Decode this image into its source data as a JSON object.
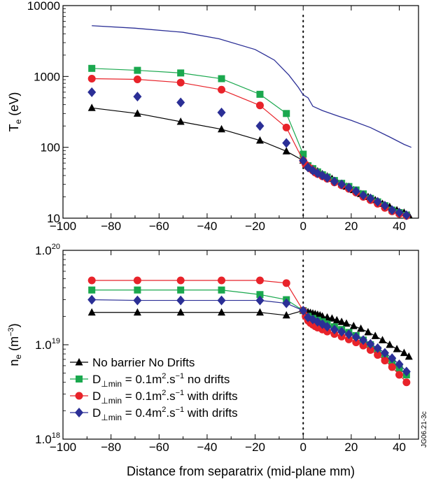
{
  "figure_id": "JG06.21-3c",
  "shared_xlabel": "Distance from separatrix (mid-plane mm)",
  "legend": [
    {
      "key": "no_barrier",
      "label": "No barrier No Drifts",
      "marker": "triangle",
      "color": "#000000"
    },
    {
      "key": "d01_nodrift",
      "label_parts": [
        "D",
        "⊥min",
        " = 0.1m",
        "2",
        ".s",
        "−1",
        " no drifts"
      ],
      "marker": "square",
      "color": "#1aa84e"
    },
    {
      "key": "d01_drift",
      "label_parts": [
        "D",
        "⊥min",
        " = 0.1m",
        "2",
        ".s",
        "−1",
        " with drifts"
      ],
      "marker": "circle",
      "color": "#e8232a"
    },
    {
      "key": "d04_drift",
      "label_parts": [
        "D",
        "⊥min",
        " = 0.4m",
        "2",
        ".s",
        "−1",
        " with drifts"
      ],
      "marker": "diamond",
      "color": "#2b2f96"
    }
  ],
  "chart_data": [
    {
      "type": "line",
      "panel": "top",
      "ylabel_parts": [
        "T",
        "e",
        " (eV)"
      ],
      "xlabel": "",
      "xlim": [
        -100,
        48
      ],
      "ylim": [
        10,
        10000
      ],
      "yscale": "log",
      "xticks": [
        -100,
        -80,
        -60,
        -40,
        -20,
        0,
        20,
        40
      ],
      "xtick_labels": [
        "−100",
        "−80",
        "−60",
        "−40",
        "−20",
        "0",
        "20",
        "40"
      ],
      "yticks": [
        10,
        100,
        1000,
        10000
      ],
      "ytick_labels": [
        "10",
        "100",
        "1000",
        "10000"
      ],
      "vline_x": 0,
      "series": [
        {
          "key": "upstream",
          "marker": "none",
          "color": "#2b2f96",
          "x": [
            -88,
            -70,
            -50,
            -35,
            -20,
            -12,
            -6,
            -2,
            0,
            2,
            4,
            8,
            14,
            20,
            28,
            36,
            42,
            45
          ],
          "y": [
            5200,
            4800,
            4200,
            3400,
            2400,
            1700,
            1050,
            700,
            550,
            500,
            380,
            330,
            280,
            240,
            190,
            140,
            110,
            100
          ]
        },
        {
          "key": "no_barrier",
          "marker": "triangle",
          "color": "#000000",
          "connect": true,
          "x": [
            -88,
            -69,
            -51,
            -34,
            -18,
            -7,
            0,
            2,
            3,
            4,
            5,
            6,
            7,
            8,
            10,
            12,
            14,
            16,
            18,
            21,
            24,
            27,
            30,
            33,
            36,
            39,
            42,
            44
          ],
          "y": [
            360,
            300,
            230,
            180,
            125,
            88,
            65,
            55,
            52,
            50,
            48,
            46,
            44,
            42,
            39,
            36,
            33,
            30,
            28,
            25,
            22,
            20,
            18,
            16,
            14.5,
            13,
            12,
            11
          ]
        },
        {
          "key": "d01_nodrift",
          "marker": "square",
          "color": "#1aa84e",
          "connect": true,
          "x": [
            -88,
            -69,
            -51,
            -34,
            -18,
            -7,
            0,
            2,
            4,
            6,
            8,
            10,
            13,
            16,
            19,
            22,
            25,
            28,
            31,
            34,
            37,
            40,
            43
          ],
          "y": [
            1300,
            1220,
            1120,
            930,
            560,
            300,
            80,
            55,
            50,
            45,
            41,
            38,
            34,
            31,
            28,
            25,
            22,
            19,
            17,
            15,
            13,
            12,
            11
          ]
        },
        {
          "key": "d01_drift",
          "marker": "circle",
          "color": "#e8232a",
          "connect": true,
          "x": [
            -88,
            -69,
            -51,
            -34,
            -18,
            -7,
            0,
            1,
            2,
            3,
            4,
            5,
            6,
            8,
            10,
            13,
            16,
            19,
            22,
            25,
            28,
            31,
            34,
            37,
            40,
            43
          ],
          "y": [
            930,
            910,
            820,
            650,
            390,
            190,
            65,
            57,
            53,
            50,
            47,
            44,
            42,
            39,
            36,
            32,
            29,
            26,
            23,
            20,
            18,
            16,
            14,
            12.5,
            11.5,
            10.8
          ]
        },
        {
          "key": "d04_drift",
          "marker": "diamond",
          "color": "#2b2f96",
          "connect": false,
          "x": [
            -88,
            -69,
            -51,
            -34,
            -18,
            -7,
            0,
            2,
            4,
            6,
            8,
            10,
            13,
            16,
            19,
            22,
            25,
            28,
            31,
            34,
            37,
            40,
            43
          ],
          "y": [
            600,
            520,
            430,
            310,
            200,
            115,
            65,
            52,
            47,
            43,
            40,
            37,
            33,
            30,
            27,
            24,
            21,
            19,
            17,
            15,
            13,
            12,
            11
          ]
        }
      ]
    },
    {
      "type": "line",
      "panel": "bottom",
      "ylabel_parts": [
        "n",
        "e",
        " (m",
        "−3",
        ")"
      ],
      "xlabel": "Distance from separatrix (mid-plane mm)",
      "xlim": [
        -100,
        48
      ],
      "ylim": [
        1e+18,
        1e+20
      ],
      "yscale": "log",
      "xticks": [
        -100,
        -80,
        -60,
        -40,
        -20,
        0,
        20,
        40
      ],
      "xtick_labels": [
        "−100",
        "−80",
        "−60",
        "−40",
        "−20",
        "0",
        "20",
        "40"
      ],
      "yticks": [
        1e+18,
        1e+19,
        1e+20
      ],
      "ytick_labels": [
        [
          "1.0",
          "18"
        ],
        [
          "1.0",
          "19"
        ],
        [
          "1.0",
          "20"
        ]
      ],
      "vline_x": 0,
      "series": [
        {
          "key": "no_barrier",
          "marker": "triangle",
          "color": "#000000",
          "connect": true,
          "x": [
            -88,
            -69,
            -51,
            -34,
            -18,
            -7,
            0,
            2,
            3,
            4,
            5,
            6,
            7,
            8,
            10,
            12,
            14,
            16,
            18,
            21,
            24,
            27,
            30,
            33,
            36,
            39,
            42,
            44
          ],
          "y": [
            2.2e+19,
            2.2e+19,
            2.2e+19,
            2.2e+19,
            2.2e+19,
            2.05e+19,
            2.3e+19,
            2.22e+19,
            2.18e+19,
            2.15e+19,
            2.12e+19,
            2.08e+19,
            2.05e+19,
            2e+19,
            1.95e+19,
            1.9e+19,
            1.82e+19,
            1.75e+19,
            1.68e+19,
            1.58e+19,
            1.48e+19,
            1.36e+19,
            1.24e+19,
            1.12e+19,
            1e+19,
            9e+18,
            8.2e+18,
            7.5e+18
          ]
        },
        {
          "key": "d01_nodrift",
          "marker": "square",
          "color": "#1aa84e",
          "connect": true,
          "x": [
            -88,
            -69,
            -51,
            -34,
            -18,
            -7,
            0,
            2,
            4,
            6,
            8,
            10,
            13,
            16,
            19,
            22,
            25,
            28,
            31,
            34,
            37,
            40,
            43
          ],
          "y": [
            3.8e+19,
            3.8e+19,
            3.8e+19,
            3.8e+19,
            3.4e+19,
            3e+19,
            2.3e+19,
            2e+19,
            1.9e+19,
            1.82e+19,
            1.75e+19,
            1.65e+19,
            1.55e+19,
            1.45e+19,
            1.35e+19,
            1.25e+19,
            1.12e+19,
            1e+19,
            8.8e+18,
            7.6e+18,
            6.5e+18,
            5.6e+18,
            4.8e+18
          ]
        },
        {
          "key": "d01_drift",
          "marker": "circle",
          "color": "#e8232a",
          "connect": true,
          "x": [
            -88,
            -69,
            -51,
            -34,
            -18,
            -7,
            0,
            1,
            2,
            3,
            4,
            5,
            6,
            8,
            10,
            13,
            16,
            19,
            22,
            25,
            28,
            31,
            34,
            37,
            40,
            43
          ],
          "y": [
            4.8e+19,
            4.8e+19,
            4.8e+19,
            4.8e+19,
            4.8e+19,
            4.5e+19,
            2.3e+19,
            2e+19,
            1.8e+19,
            1.7e+19,
            1.63e+19,
            1.57e+19,
            1.52e+19,
            1.45e+19,
            1.38e+19,
            1.3e+19,
            1.22e+19,
            1.14e+19,
            1.06e+19,
            9.8e+18,
            8.8e+18,
            7.8e+18,
            6.8e+18,
            5.8e+18,
            4.8e+18,
            4e+18
          ]
        },
        {
          "key": "d04_drift",
          "marker": "diamond",
          "color": "#2b2f96",
          "connect": true,
          "x": [
            -88,
            -69,
            -51,
            -34,
            -18,
            -7,
            0,
            2,
            4,
            6,
            8,
            10,
            13,
            16,
            19,
            22,
            25,
            28,
            31,
            34,
            37,
            40,
            43
          ],
          "y": [
            3e+19,
            2.95e+19,
            2.95e+19,
            2.95e+19,
            2.95e+19,
            2.75e+19,
            2.3e+19,
            1.95e+19,
            1.85e+19,
            1.75e+19,
            1.65e+19,
            1.55e+19,
            1.45e+19,
            1.37e+19,
            1.29e+19,
            1.21e+19,
            1.12e+19,
            1.02e+19,
            9.2e+18,
            8.2e+18,
            7.2e+18,
            6.2e+18,
            5.2e+18
          ]
        }
      ]
    }
  ]
}
